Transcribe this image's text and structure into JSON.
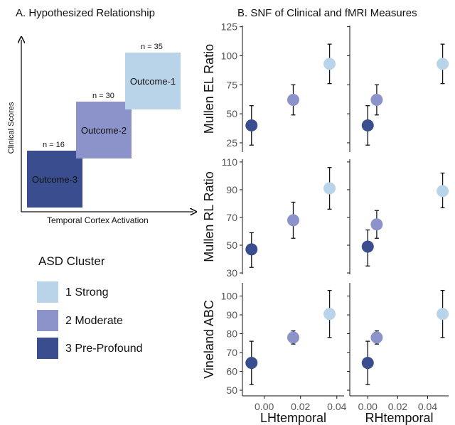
{
  "panel_a": {
    "title": "A.  Hypothesized Relationship",
    "y_label": "Clinical Scores",
    "x_label": "Temporal Cortex Activation",
    "boxes": [
      {
        "label": "Outcome-3",
        "n": "n = 16",
        "color": "#3a4e8f",
        "text_color": "#111111"
      },
      {
        "label": "Outcome-2",
        "n": "n = 30",
        "color": "#8c93cb",
        "text_color": "#111111"
      },
      {
        "label": "Outcome-1",
        "n": "n = 35",
        "color": "#b9d3e8",
        "text_color": "#111111"
      }
    ]
  },
  "legend": {
    "title": "ASD Cluster",
    "items": [
      {
        "label": "1  Strong",
        "color": "#b9d3e8"
      },
      {
        "label": "2  Moderate",
        "color": "#8c93cb"
      },
      {
        "label": "3  Pre-Profound",
        "color": "#3a4e8f"
      }
    ]
  },
  "panel_b": {
    "title": "B.  SNF of Clinical and fMRI Measures"
  },
  "chart_data": {
    "type": "scatter",
    "title": "B.  SNF of Clinical and fMRI Measures",
    "x_columns": [
      {
        "label": "LHtemporal",
        "xlim": [
          -0.012,
          0.044
        ],
        "ticks": [
          0.0,
          0.02,
          0.04
        ],
        "tick_labels": [
          "0.00",
          "0.02",
          "0.04"
        ]
      },
      {
        "label": "RHtemporal",
        "xlim": [
          -0.012,
          0.054
        ],
        "ticks": [
          0.0,
          0.02,
          0.04
        ],
        "tick_labels": [
          "0.00",
          "0.02",
          "0.04"
        ]
      }
    ],
    "y_rows": [
      {
        "label": "Mullen EL Ratio",
        "ylim": [
          17,
          126
        ],
        "ticks": [
          25,
          50,
          75,
          100,
          125
        ]
      },
      {
        "label": "Mullen RL Ratio",
        "ylim": [
          29,
          112
        ],
        "ticks": [
          30,
          50,
          70,
          90,
          110
        ]
      },
      {
        "label": "Vineland ABC",
        "ylim": [
          47,
          107
        ],
        "ticks": [
          50,
          60,
          70,
          80,
          90,
          100
        ]
      }
    ],
    "cluster_colors": {
      "1": "#b9d3e8",
      "2": "#8c93cb",
      "3": "#3a4e8f"
    },
    "panels": [
      {
        "row": 0,
        "col": 0,
        "points": [
          {
            "cluster": 3,
            "x": -0.007,
            "y": 40,
            "lo": 23,
            "hi": 57
          },
          {
            "cluster": 2,
            "x": 0.016,
            "y": 62,
            "lo": 49,
            "hi": 75
          },
          {
            "cluster": 1,
            "x": 0.036,
            "y": 93,
            "lo": 76,
            "hi": 110
          }
        ]
      },
      {
        "row": 0,
        "col": 1,
        "points": [
          {
            "cluster": 3,
            "x": 0.0,
            "y": 40,
            "lo": 23,
            "hi": 57
          },
          {
            "cluster": 2,
            "x": 0.006,
            "y": 62,
            "lo": 49,
            "hi": 75
          },
          {
            "cluster": 1,
            "x": 0.05,
            "y": 93,
            "lo": 76,
            "hi": 110
          }
        ]
      },
      {
        "row": 1,
        "col": 0,
        "points": [
          {
            "cluster": 3,
            "x": -0.007,
            "y": 47,
            "lo": 34,
            "hi": 59
          },
          {
            "cluster": 2,
            "x": 0.016,
            "y": 68,
            "lo": 55,
            "hi": 81
          },
          {
            "cluster": 1,
            "x": 0.036,
            "y": 91,
            "lo": 76,
            "hi": 106
          }
        ]
      },
      {
        "row": 1,
        "col": 1,
        "points": [
          {
            "cluster": 3,
            "x": 0.0,
            "y": 49,
            "lo": 35,
            "hi": 61
          },
          {
            "cluster": 2,
            "x": 0.006,
            "y": 65,
            "lo": 55,
            "hi": 75
          },
          {
            "cluster": 1,
            "x": 0.05,
            "y": 89,
            "lo": 77,
            "hi": 102
          }
        ]
      },
      {
        "row": 2,
        "col": 0,
        "points": [
          {
            "cluster": 3,
            "x": -0.007,
            "y": 64.5,
            "lo": 53,
            "hi": 76
          },
          {
            "cluster": 2,
            "x": 0.016,
            "y": 78,
            "lo": 74.5,
            "hi": 81.5
          },
          {
            "cluster": 1,
            "x": 0.036,
            "y": 90.5,
            "lo": 78,
            "hi": 103
          }
        ]
      },
      {
        "row": 2,
        "col": 1,
        "points": [
          {
            "cluster": 3,
            "x": 0.0,
            "y": 64.5,
            "lo": 53,
            "hi": 76
          },
          {
            "cluster": 2,
            "x": 0.006,
            "y": 78,
            "lo": 74.5,
            "hi": 81.5
          },
          {
            "cluster": 1,
            "x": 0.05,
            "y": 90.5,
            "lo": 78,
            "hi": 103
          }
        ]
      }
    ],
    "grid": false,
    "legend": "left"
  }
}
